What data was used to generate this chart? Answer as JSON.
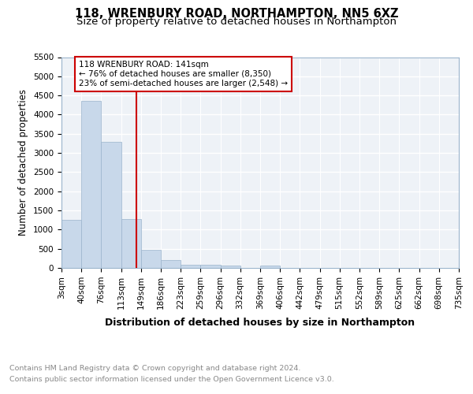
{
  "title": "118, WRENBURY ROAD, NORTHAMPTON, NN5 6XZ",
  "subtitle": "Size of property relative to detached houses in Northampton",
  "xlabel": "Distribution of detached houses by size in Northampton",
  "ylabel": "Number of detached properties",
  "footer_line1": "Contains HM Land Registry data © Crown copyright and database right 2024.",
  "footer_line2": "Contains public sector information licensed under the Open Government Licence v3.0.",
  "bin_edges": [
    3,
    40,
    76,
    113,
    149,
    186,
    223,
    259,
    296,
    332,
    369,
    406,
    442,
    479,
    515,
    552,
    589,
    625,
    662,
    698,
    735
  ],
  "bar_heights": [
    1255,
    4350,
    3300,
    1280,
    480,
    210,
    90,
    90,
    65,
    0,
    65,
    0,
    0,
    0,
    0,
    0,
    0,
    0,
    0,
    0
  ],
  "bar_color": "#c8d8ea",
  "bar_edge_color": "#9ab4cc",
  "property_size": 141,
  "vline_color": "#cc0000",
  "annotation_line1": "118 WRENBURY ROAD: 141sqm",
  "annotation_line2": "← 76% of detached houses are smaller (8,350)",
  "annotation_line3": "23% of semi-detached houses are larger (2,548) →",
  "annotation_box_color": "#cc0000",
  "ylim": [
    0,
    5500
  ],
  "yticks": [
    0,
    500,
    1000,
    1500,
    2000,
    2500,
    3000,
    3500,
    4000,
    4500,
    5000,
    5500
  ],
  "bg_color": "#eef2f7",
  "grid_color": "#ffffff",
  "title_fontsize": 10.5,
  "subtitle_fontsize": 9.5,
  "ylabel_fontsize": 8.5,
  "xlabel_fontsize": 9,
  "tick_fontsize": 7.5,
  "annotation_fontsize": 7.5,
  "footer_fontsize": 6.8
}
